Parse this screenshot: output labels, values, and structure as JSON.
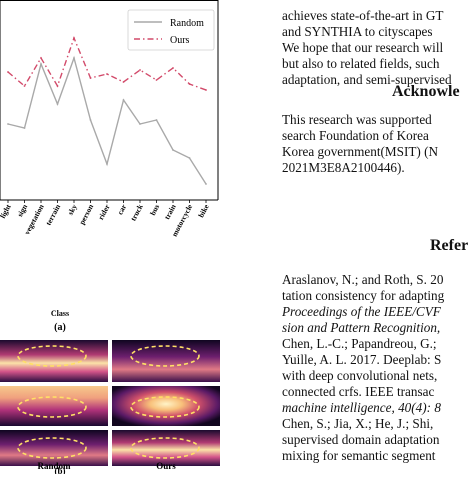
{
  "figure": {
    "chart_data": {
      "type": "line",
      "xlabel": "Class",
      "ylabel": "",
      "categories": [
        "light",
        "sign",
        "vegetation",
        "terrain",
        "sky",
        "person",
        "rider",
        "car",
        "truck",
        "bus",
        "train",
        "motorcycle",
        "bike"
      ],
      "ylim": [
        0,
        100
      ],
      "series": [
        {
          "name": "Random",
          "color": "#a9a9a9",
          "values": [
            38,
            36,
            68,
            48,
            71,
            40,
            18,
            50,
            38,
            40,
            25,
            21,
            8
          ]
        },
        {
          "name": "Ours",
          "color": "#d24a6a",
          "values": [
            64,
            57,
            71,
            57,
            81,
            61,
            63,
            59,
            65,
            60,
            66,
            58,
            55
          ]
        }
      ],
      "legend": "top-right",
      "grid": false
    },
    "panel_a_label": "(a)",
    "panel_b_label": "(b)",
    "heatmap_labels": [
      "Random",
      "Ours"
    ]
  },
  "text": {
    "top_lines": [
      "achieves state-of-the-art in GT",
      "and SYNTHIA to cityscapes",
      "We hope that our research will",
      "but also to related fields, such",
      "adaptation, and semi-supervised"
    ],
    "ack_heading": "Acknowle",
    "ack_lines": [
      "This research was supported",
      "search Foundation of Korea",
      "Korea government(MSIT) (N",
      "2021M3E8A2100446)."
    ],
    "ref_heading": "Refer",
    "ref_lines": [
      {
        "text": "Araslanov, N.; and Roth, S. 20",
        "italic": false
      },
      {
        "text": "tation consistency for adapting",
        "italic": false
      },
      {
        "text": "Proceedings of the IEEE/CVF",
        "italic": true
      },
      {
        "text": "sion and Pattern Recognition,",
        "italic": true
      },
      {
        "text": "Chen, L.-C.; Papandreou, G.;",
        "italic": false
      },
      {
        "text": "Yuille, A. L. 2017. Deeplab: S",
        "italic": false
      },
      {
        "text": "with deep convolutional nets,",
        "italic": false
      },
      {
        "text": "connected crfs. IEEE transac",
        "italic": false
      },
      {
        "text": "machine intelligence, 40(4): 8",
        "italic": true
      },
      {
        "text": "Chen, S.; Jia, X.; He, J.; Shi,",
        "italic": false
      },
      {
        "text": "supervised domain adaptation",
        "italic": false
      },
      {
        "text": "mixing for semantic segment",
        "italic": false
      }
    ]
  }
}
